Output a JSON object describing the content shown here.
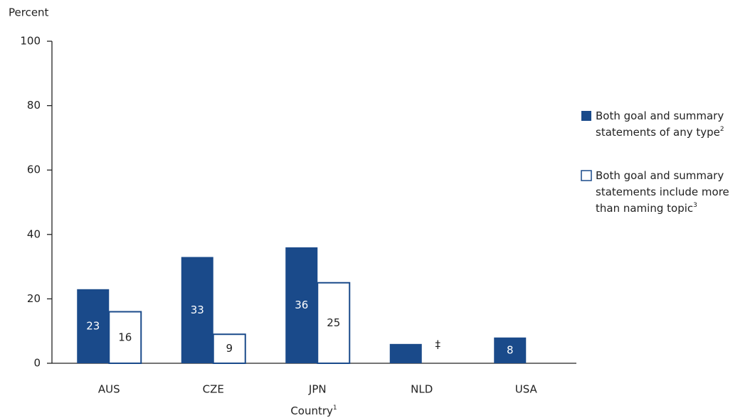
{
  "chart_data": {
    "type": "bar",
    "ylabel": "Percent",
    "xlabel": "Country",
    "xlabel_note": "1",
    "categories": [
      "AUS",
      "CZE",
      "JPN",
      "NLD",
      "USA"
    ],
    "series": [
      {
        "name": "Both goal and summary statements of any type",
        "note": "2",
        "color": "#1a4a8a",
        "fill": "solid",
        "values": [
          23,
          33,
          36,
          6,
          8
        ],
        "value_labels": [
          "23",
          "33",
          "36",
          null,
          "8"
        ]
      },
      {
        "name": "Both goal and summary statements include more than naming topic",
        "note": "3",
        "color": "#1a4a8a",
        "fill": "outline",
        "values": [
          16,
          9,
          25,
          null,
          null
        ],
        "value_labels": [
          "16",
          "9",
          "25",
          "‡",
          null
        ]
      }
    ],
    "ylim": [
      0,
      100
    ],
    "yticks": [
      0,
      20,
      40,
      60,
      80,
      100
    ],
    "grid": false,
    "legend": "right"
  }
}
